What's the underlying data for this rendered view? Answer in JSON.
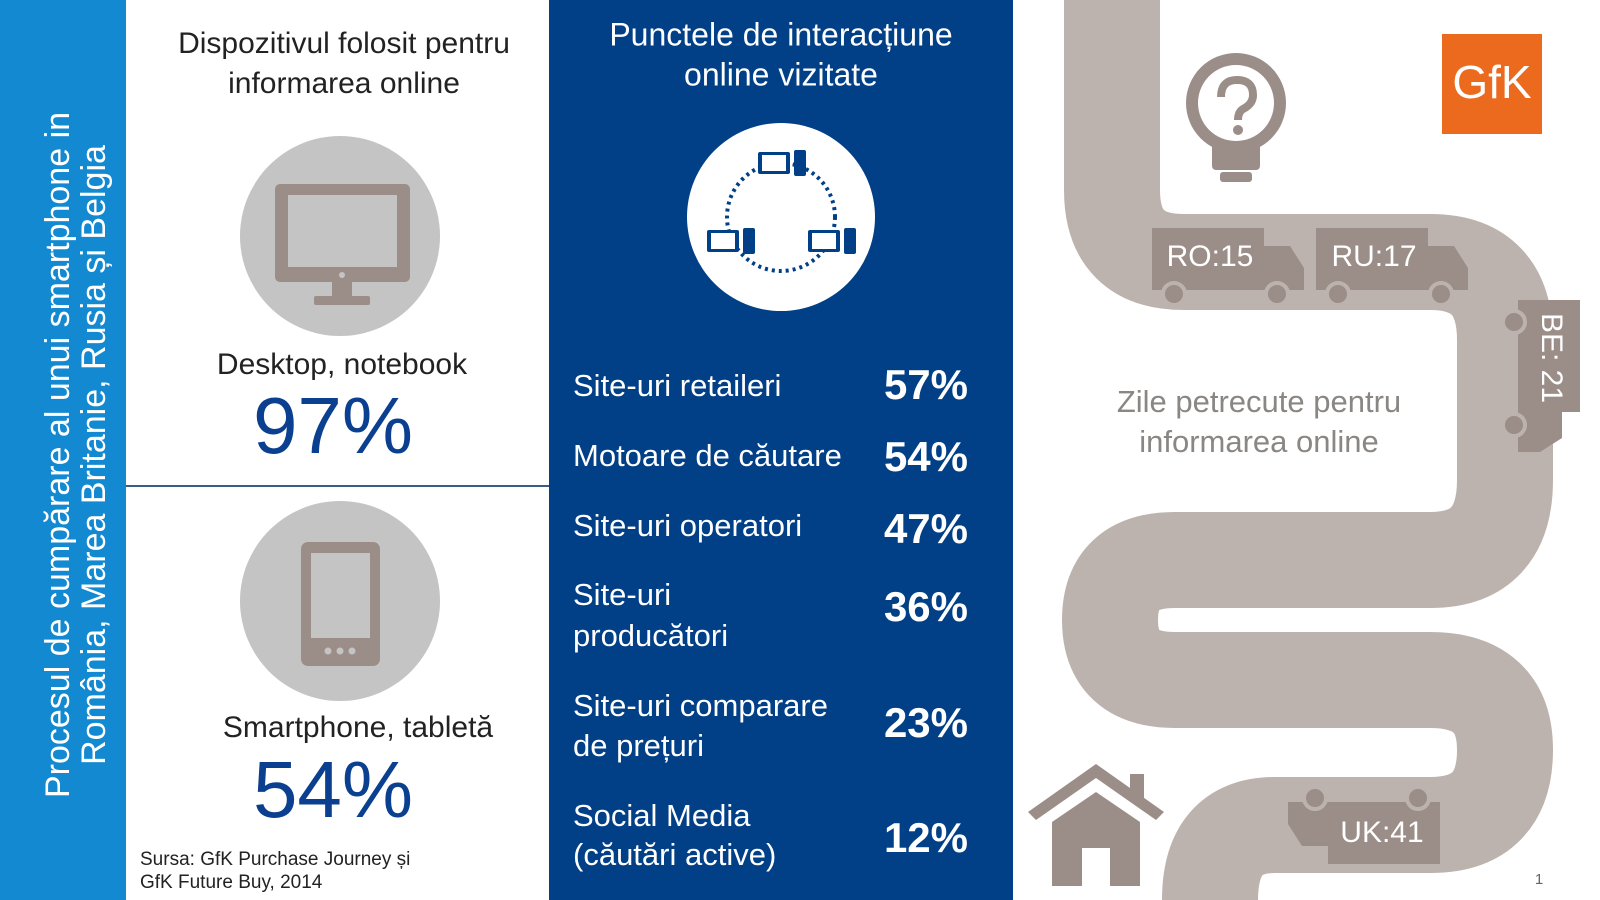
{
  "sidebar": {
    "title": [
      "Procesul de cumpărare al unui smartphone in",
      "România, Marea Britanie, Rusia și Belgia"
    ]
  },
  "devices": {
    "title": [
      "Dispozitivul folosit pentru",
      "informarea online"
    ],
    "items": [
      {
        "label": "Desktop, notebook",
        "value": "97%"
      },
      {
        "label": "Smartphone, tabletă",
        "value": "54%"
      }
    ]
  },
  "source": [
    "Sursa: GfK Purchase Journey și",
    "GfK Future Buy, 2014"
  ],
  "touchpoints": {
    "title": [
      "Punctele de interacțiune",
      "online vizitate"
    ],
    "items": [
      {
        "label": [
          "Site-uri retaileri"
        ],
        "value": "57%"
      },
      {
        "label": [
          "Motoare de căutare"
        ],
        "value": "54%"
      },
      {
        "label": [
          "Site-uri operatori"
        ],
        "value": "47%"
      },
      {
        "label": [
          "Site-uri",
          "producători"
        ],
        "value": "36%"
      },
      {
        "label": [
          "Site-uri comparare",
          "de prețuri"
        ],
        "value": "23%"
      },
      {
        "label": [
          "Social Media",
          "(căutări active)"
        ],
        "value": "12%"
      }
    ]
  },
  "journey": {
    "title": [
      "Zile petrecute pentru",
      "informarea online"
    ],
    "markers": [
      "RO:15",
      "RU:17",
      "BE: 21",
      "UK:41"
    ]
  },
  "logo": "GfK",
  "page_number": "1"
}
